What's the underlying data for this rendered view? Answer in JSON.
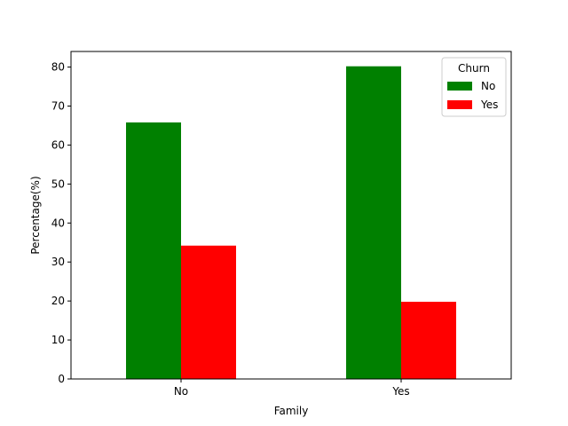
{
  "chart_data": {
    "type": "bar",
    "title": "",
    "xlabel": "Family",
    "ylabel": "Percentage(%)",
    "categories": [
      "No",
      "Yes"
    ],
    "ylim": [
      0,
      84
    ],
    "yticks": [
      0,
      10,
      20,
      30,
      40,
      50,
      60,
      70,
      80
    ],
    "grid": false,
    "legend": {
      "title": "Churn",
      "placement": "top-right"
    },
    "series": [
      {
        "name": "No",
        "color": "#008000",
        "values": [
          65.8,
          80.2
        ]
      },
      {
        "name": "Yes",
        "color": "#ff0000",
        "values": [
          34.2,
          19.8
        ]
      }
    ]
  }
}
